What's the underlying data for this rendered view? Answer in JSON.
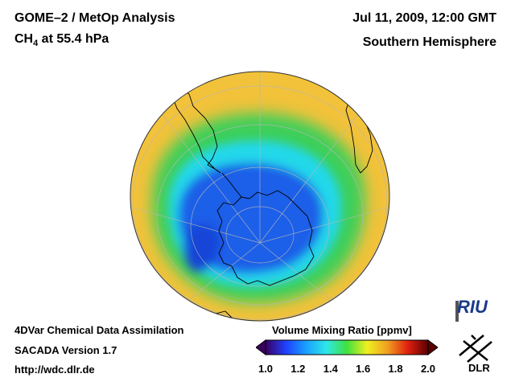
{
  "header": {
    "title": "GOME–2 / MetOp Analysis",
    "species": "CH",
    "species_sub": "4",
    "level": " at 55.4 hPa",
    "datetime": "Jul 11, 2009, 12:00 GMT",
    "region": "Southern Hemisphere"
  },
  "footer": {
    "line1": "4DVar Chemical Data Assimilation",
    "line2": "SACADA Version 1.7",
    "line3": "http://wdc.dlr.de"
  },
  "colorbar": {
    "title": "Volume Mixing Ratio [ppmv]",
    "min": 1.0,
    "max": 2.0,
    "ticks": [
      "1.0",
      "1.2",
      "1.4",
      "1.6",
      "1.8",
      "2.0"
    ],
    "colors": [
      "#3a0060",
      "#2040ff",
      "#1aa0ff",
      "#2ee8e8",
      "#40e040",
      "#f0f020",
      "#f0a020",
      "#e02010",
      "#5a0000"
    ]
  },
  "logos": {
    "riu": "RIU",
    "dlr": "DLR"
  },
  "map": {
    "projection": "orthographic-south-pole",
    "field_colors": {
      "high": "#f2c23a",
      "mid_green": "#3ecf5a",
      "cyan": "#22d8ea",
      "low": "#1f5ee8",
      "lowest": "#1844d8"
    }
  }
}
